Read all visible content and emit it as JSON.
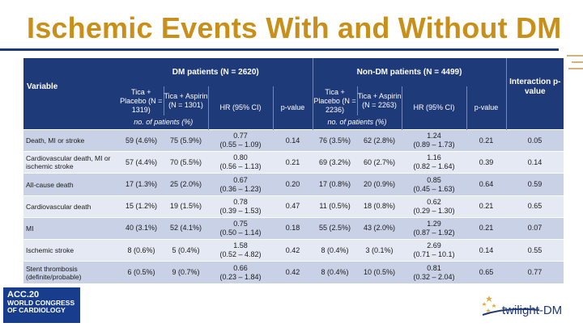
{
  "title": "Ischemic Events With and Without DM",
  "table": {
    "variable_header": "Variable",
    "dm_group": "DM patients (N = 2620)",
    "non_dm_group": "Non-DM patients (N = 4499)",
    "interaction_header": "Interaction p-value",
    "dm_columns": {
      "tica_placebo": "Tica + Placebo (N = 1319)",
      "tica_aspirin": "Tica + Aspirin (N = 1301)",
      "hr": "HR (95% CI)",
      "p": "p-value"
    },
    "non_dm_columns": {
      "tica_placebo": "Tica + Placebo (N = 2236)",
      "tica_aspirin": "Tica + Aspirin (N = 2263)",
      "hr": "HR (95% CI)",
      "p": "p-value"
    },
    "subheader_dm": "no. of patients (%)",
    "subheader_non_dm": "no. of patients (%)",
    "rows": [
      {
        "variable": "Death, MI or stroke",
        "dm_placebo": "59 (4.6%)",
        "dm_aspirin": "75 (5.9%)",
        "dm_hr": "0.77",
        "dm_ci": "(0.55 – 1.09)",
        "dm_p": "0.14",
        "ndm_placebo": "76 (3.5%)",
        "ndm_aspirin": "62 (2.8%)",
        "ndm_hr": "1.24",
        "ndm_ci": "(0.89 – 1.73)",
        "ndm_p": "0.21",
        "interaction": "0.05"
      },
      {
        "variable": "Cardiovascular death, MI or ischemic stroke",
        "dm_placebo": "57 (4.4%)",
        "dm_aspirin": "70 (5.5%)",
        "dm_hr": "0.80",
        "dm_ci": "(0.56 – 1.13)",
        "dm_p": "0.21",
        "ndm_placebo": "69 (3.2%)",
        "ndm_aspirin": "60 (2.7%)",
        "ndm_hr": "1.16",
        "ndm_ci": "(0.82 – 1.64)",
        "ndm_p": "0.39",
        "interaction": "0.14"
      },
      {
        "variable": "All-cause death",
        "dm_placebo": "17 (1.3%)",
        "dm_aspirin": "25 (2.0%)",
        "dm_hr": "0.67",
        "dm_ci": "(0.36 – 1.23)",
        "dm_p": "0.20",
        "ndm_placebo": "17 (0.8%)",
        "ndm_aspirin": "20 (0.9%)",
        "ndm_hr": "0.85",
        "ndm_ci": "(0.45 – 1.63)",
        "ndm_p": "0.64",
        "interaction": "0.59"
      },
      {
        "variable": "Cardiovascular death",
        "dm_placebo": "15 (1.2%)",
        "dm_aspirin": "19 (1.5%)",
        "dm_hr": "0.78",
        "dm_ci": "(0.39 – 1.53)",
        "dm_p": "0.47",
        "ndm_placebo": "11 (0.5%)",
        "ndm_aspirin": "18 (0.8%)",
        "ndm_hr": "0.62",
        "ndm_ci": "(0.29 – 1.30)",
        "ndm_p": "0.21",
        "interaction": "0.65"
      },
      {
        "variable": "MI",
        "dm_placebo": "40 (3.1%)",
        "dm_aspirin": "52 (4.1%)",
        "dm_hr": "0.75",
        "dm_ci": "(0.50 – 1.14)",
        "dm_p": "0.18",
        "ndm_placebo": "55 (2.5%)",
        "ndm_aspirin": "43 (2.0%)",
        "ndm_hr": "1.29",
        "ndm_ci": "(0.87 – 1.92)",
        "ndm_p": "0.21",
        "interaction": "0.07"
      },
      {
        "variable": "Ischemic stroke",
        "dm_placebo": "8 (0.6%)",
        "dm_aspirin": "5 (0.4%)",
        "dm_hr": "1.58",
        "dm_ci": "(0.52 – 4.82)",
        "dm_p": "0.42",
        "ndm_placebo": "8 (0.4%)",
        "ndm_aspirin": "3 (0.1%)",
        "ndm_hr": "2.69",
        "ndm_ci": "(0.71 – 10.1)",
        "ndm_p": "0.14",
        "interaction": "0.55"
      },
      {
        "variable": "Stent thrombosis (definite/probable)",
        "dm_placebo": "6 (0.5%)",
        "dm_aspirin": "9 (0.7%)",
        "dm_hr": "0.66",
        "dm_ci": "(0.23 – 1.84)",
        "dm_p": "0.42",
        "ndm_placebo": "8 (0.4%)",
        "ndm_aspirin": "10 (0.5%)",
        "ndm_hr": "0.81",
        "ndm_ci": "(0.32 – 2.04)",
        "ndm_p": "0.65",
        "interaction": "0.77"
      }
    ]
  },
  "footer": {
    "acc_logo": "ACC.20",
    "acc_subtitle": "WORLD CONGRESS OF CARDIOLOGY",
    "trial_logo": "twilight-DM"
  },
  "colors": {
    "title": "#c8901a",
    "header_bg": "#1f3a78",
    "row_odd": "#c9d1e6",
    "row_even": "#e5e9f3"
  }
}
